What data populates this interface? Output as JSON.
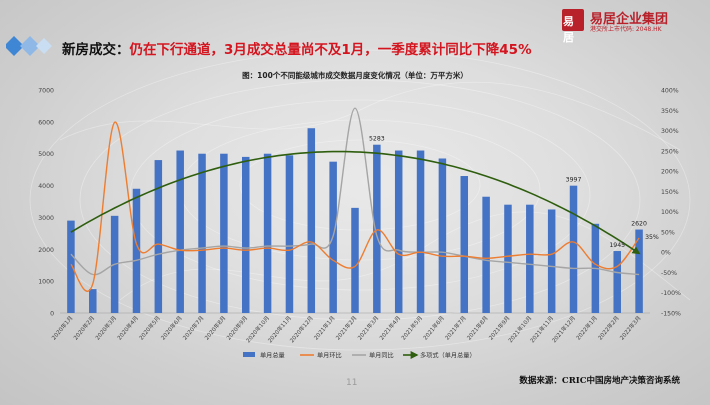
{
  "headline": {
    "lead": "新房成交：",
    "rest": "仍在下行通道，3月成交总量尚不及1月，一季度累计同比下降45%"
  },
  "logo": {
    "mark": "易居",
    "name": "易居企业集团",
    "sub": "港交所上市代码: 2048.HK"
  },
  "source": "数据来源：CRIC中国房地产决策咨询系统",
  "page_number": "11",
  "colors": {
    "bar": "#4472c4",
    "mom": "#ed7d31",
    "yoy": "#a5a5a5",
    "trend": "#2e5e0e",
    "headline_red": "#d4141e",
    "deco_blue": "#3f86d4"
  },
  "chart_data": {
    "type": "bar",
    "title": "图：100个不同能级城市成交数据月度变化情况（单位：万平方米）",
    "categories": [
      "2020年1月",
      "2020年2月",
      "2020年3月",
      "2020年4月",
      "2020年5月",
      "2020年6月",
      "2020年7月",
      "2020年8月",
      "2020年9月",
      "2020年10月",
      "2020年11月",
      "2020年12月",
      "2021年1月",
      "2021年2月",
      "2021年3月",
      "2021年4月",
      "2021年5月",
      "2021年6月",
      "2021年7月",
      "2021年8月",
      "2021年9月",
      "2021年10月",
      "2021年11月",
      "2021年12月",
      "2022年1月",
      "2022年2月",
      "2022年3月"
    ],
    "y_left": {
      "ylim": [
        0,
        7000
      ],
      "ticks": [
        "0",
        "1000",
        "2000",
        "3000",
        "4000",
        "5000",
        "6000",
        "7000"
      ]
    },
    "y_right": {
      "ylim": [
        -150,
        400
      ],
      "ticks": [
        "-150%",
        "-100%",
        "-50%",
        "0%",
        "50%",
        "100%",
        "150%",
        "200%",
        "250%",
        "300%",
        "350%",
        "400%"
      ]
    },
    "series": [
      {
        "name": "单月总量",
        "type": "bar",
        "axis": "left",
        "values": [
          2900,
          750,
          3050,
          3900,
          4800,
          5100,
          5000,
          5000,
          4900,
          5000,
          4950,
          5800,
          4750,
          3300,
          5283,
          5100,
          5100,
          4850,
          4300,
          3650,
          3400,
          3400,
          3250,
          3997,
          2800,
          1945,
          2620
        ]
      },
      {
        "name": "单月环比",
        "type": "line",
        "axis": "right",
        "values": [
          -30,
          -78,
          320,
          20,
          20,
          5,
          5,
          10,
          5,
          10,
          5,
          25,
          -20,
          -35,
          55,
          -5,
          0,
          -10,
          -10,
          -15,
          -10,
          -5,
          -5,
          25,
          -30,
          -35,
          35
        ]
      },
      {
        "name": "单月同比",
        "type": "line",
        "axis": "right",
        "values": [
          -5,
          -55,
          -30,
          -20,
          -5,
          5,
          10,
          15,
          10,
          15,
          15,
          20,
          40,
          355,
          40,
          5,
          0,
          0,
          -10,
          -20,
          -25,
          -30,
          -35,
          -40,
          -40,
          -50,
          -55
        ]
      },
      {
        "name": "多项式（单月总量）",
        "type": "trend",
        "axis": "left"
      }
    ],
    "data_labels": [
      {
        "index": 14,
        "text": "5283"
      },
      {
        "index": 23,
        "text": "3997"
      },
      {
        "index": 25,
        "text": "1945"
      },
      {
        "index": 26,
        "text": "2620"
      }
    ],
    "right_annotation": {
      "index": 26,
      "text": "35%"
    },
    "legend_position": "bottom",
    "grid": false
  }
}
